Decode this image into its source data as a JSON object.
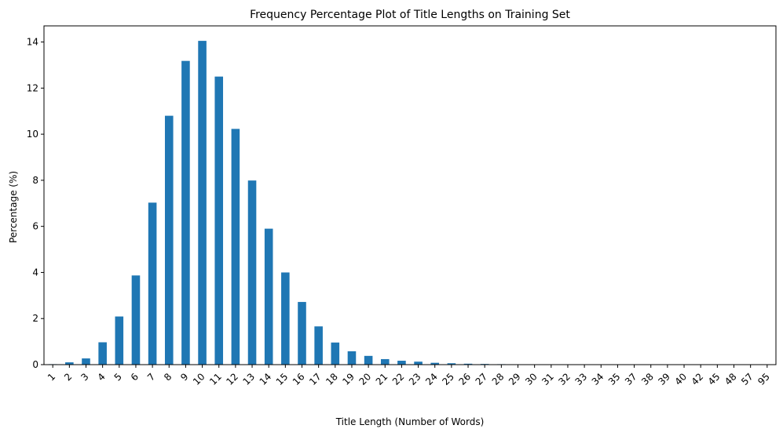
{
  "chart_data": {
    "type": "bar",
    "title": "Frequency Percentage Plot of Title Lengths on Training Set",
    "xlabel": "Title Length (Number of Words)",
    "ylabel": "Percentage (%)",
    "ylim": [
      0,
      14.7
    ],
    "yticks": [
      0,
      2,
      4,
      6,
      8,
      10,
      12,
      14
    ],
    "grid": false,
    "bar_color": "#1f77b4",
    "categories": [
      "1",
      "2",
      "3",
      "4",
      "5",
      "6",
      "7",
      "8",
      "9",
      "10",
      "11",
      "12",
      "13",
      "14",
      "15",
      "16",
      "17",
      "18",
      "19",
      "20",
      "21",
      "22",
      "23",
      "24",
      "25",
      "26",
      "27",
      "28",
      "29",
      "30",
      "31",
      "32",
      "33",
      "34",
      "35",
      "37",
      "38",
      "39",
      "40",
      "42",
      "45",
      "48",
      "57",
      "95"
    ],
    "values": [
      0.02,
      0.1,
      0.27,
      0.97,
      2.09,
      3.87,
      7.03,
      10.8,
      13.18,
      14.05,
      12.5,
      10.23,
      7.99,
      5.9,
      4.0,
      2.72,
      1.66,
      0.96,
      0.58,
      0.38,
      0.24,
      0.17,
      0.13,
      0.08,
      0.06,
      0.04,
      0.03,
      0.02,
      0.015,
      0.01,
      0.01,
      0.008,
      0.006,
      0.005,
      0.004,
      0.003,
      0.003,
      0.002,
      0.002,
      0.002,
      0.001,
      0.001,
      0.001,
      0.001
    ]
  }
}
